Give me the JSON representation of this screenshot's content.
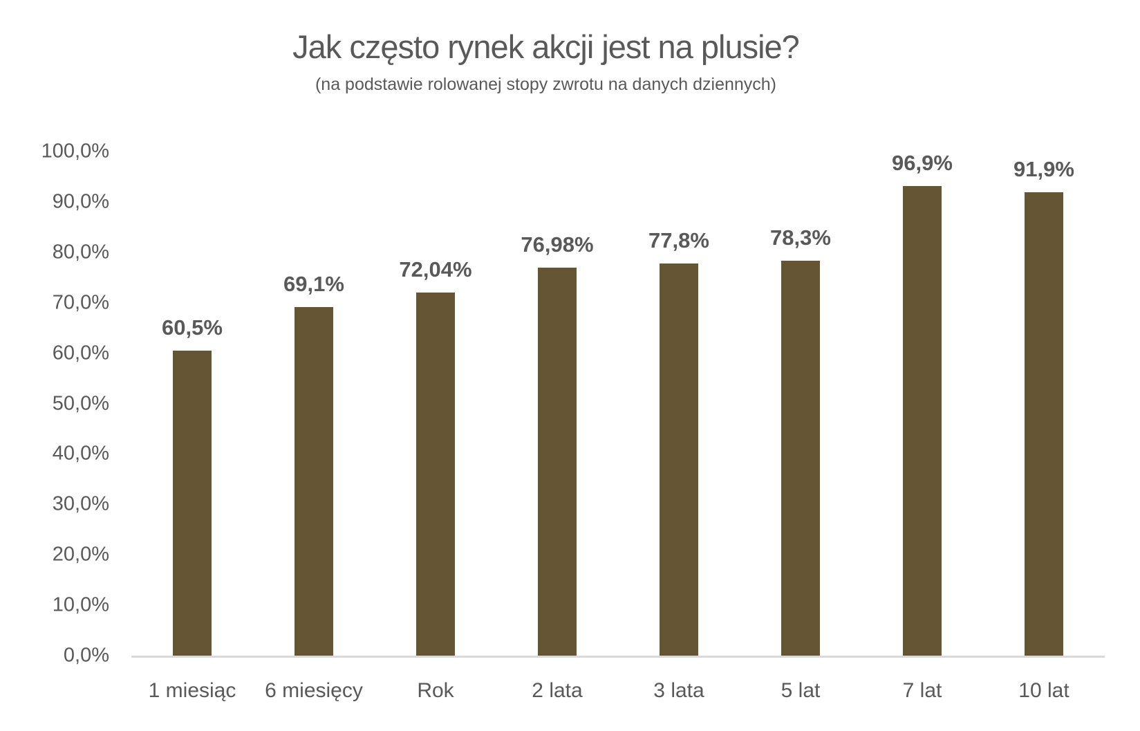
{
  "chart_data": {
    "type": "bar",
    "title": "Jak często rynek akcji jest na plusie?",
    "subtitle": "(na podstawie rolowanej stopy zwrotu na danych dziennych)",
    "categories": [
      "1 miesiąc",
      "6 miesięcy",
      "Rok",
      "2 lata",
      "3 lata",
      "5 lat",
      "7 lat",
      "10 lat"
    ],
    "values": [
      60.5,
      69.1,
      72.04,
      76.98,
      77.8,
      78.3,
      96.9,
      91.9
    ],
    "data_labels": [
      "60,5%",
      "69,1%",
      "72,04%",
      "76,98%",
      "77,8%",
      "78,3%",
      "96,9%",
      "91,9%"
    ],
    "y_ticks": [
      "100,0%",
      "90,0%",
      "80,0%",
      "70,0%",
      "60,0%",
      "50,0%",
      "40,0%",
      "30,0%",
      "20,0%",
      "10,0%",
      "0,0%"
    ],
    "y_tick_values": [
      100,
      90,
      80,
      70,
      60,
      50,
      40,
      30,
      20,
      10,
      0
    ],
    "ylim": [
      0,
      100
    ],
    "xlabel": "",
    "ylabel": "",
    "grid": false,
    "legend": "none",
    "bar_color": "#665535",
    "text_color": "#595959",
    "axis_line_color": "#d9d9d9"
  }
}
